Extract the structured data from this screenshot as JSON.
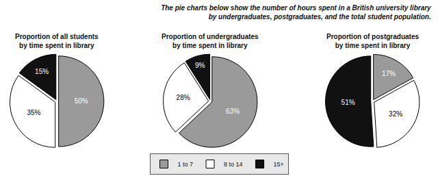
{
  "title": "The pie charts below show the number of hours spent in a British university library by undergraduates, postgraduates, and the total student population.",
  "legend": "bottom",
  "chart_data": [
    {
      "type": "pie",
      "title": "Proportion of all students by time spent in library",
      "categories": [
        "1 to 7",
        "8 to 14",
        "15+"
      ],
      "values": [
        50,
        35,
        15
      ],
      "value_labels": [
        "50%",
        "35%",
        "15%"
      ],
      "colors": [
        "#9a9a9a",
        "#ffffff",
        "#111111"
      ],
      "data_labels": true
    },
    {
      "type": "pie",
      "title": "Proportion of undergraduates by time spent in library",
      "categories": [
        "1 to 7",
        "8 to 14",
        "15+"
      ],
      "values": [
        63,
        28,
        9
      ],
      "value_labels": [
        "63%",
        "28%",
        "9%"
      ],
      "colors": [
        "#9a9a9a",
        "#ffffff",
        "#111111"
      ],
      "data_labels": true
    },
    {
      "type": "pie",
      "title": "Proportion of postgraduates by time spent in library",
      "categories": [
        "1 to 7",
        "8 to 14",
        "15+"
      ],
      "values": [
        17,
        32,
        51
      ],
      "value_labels": [
        "17%",
        "32%",
        "51%"
      ],
      "colors": [
        "#9a9a9a",
        "#ffffff",
        "#111111"
      ],
      "data_labels": true
    }
  ]
}
